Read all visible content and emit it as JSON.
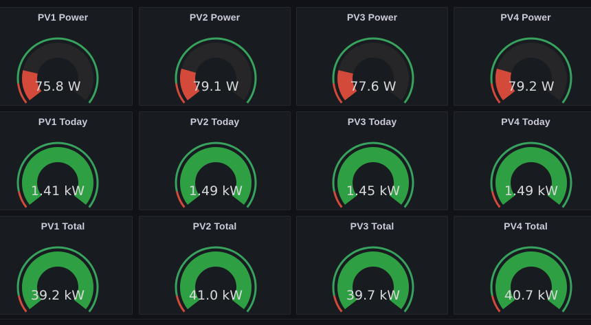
{
  "colors": {
    "background": "#111217",
    "panel": "#181b1f",
    "track": "#262628",
    "threshold_ok": "#37a35e",
    "threshold_low": "#d44a3a",
    "fill_green": "#2ea043"
  },
  "panels": [
    {
      "title": "PV1 Power",
      "value_text": "75.8 W",
      "fill_fraction": 0.2,
      "threshold_fraction": 0.12,
      "style": "power"
    },
    {
      "title": "PV2 Power",
      "value_text": "79.1 W",
      "fill_fraction": 0.21,
      "threshold_fraction": 0.12,
      "style": "power"
    },
    {
      "title": "PV3 Power",
      "value_text": "77.6 W",
      "fill_fraction": 0.2,
      "threshold_fraction": 0.12,
      "style": "power"
    },
    {
      "title": "PV4 Power",
      "value_text": "79.2 W",
      "fill_fraction": 0.21,
      "threshold_fraction": 0.12,
      "style": "power"
    },
    {
      "title": "PV1 Today",
      "value_text": "1.41 kW",
      "fill_fraction": 1.0,
      "threshold_fraction": 0.1,
      "style": "energy"
    },
    {
      "title": "PV2 Today",
      "value_text": "1.49 kW",
      "fill_fraction": 1.0,
      "threshold_fraction": 0.1,
      "style": "energy"
    },
    {
      "title": "PV3 Today",
      "value_text": "1.45 kW",
      "fill_fraction": 1.0,
      "threshold_fraction": 0.1,
      "style": "energy"
    },
    {
      "title": "PV4 Today",
      "value_text": "1.49 kW",
      "fill_fraction": 1.0,
      "threshold_fraction": 0.1,
      "style": "energy"
    },
    {
      "title": "PV1 Total",
      "value_text": "39.2 kW",
      "fill_fraction": 1.0,
      "threshold_fraction": 0.1,
      "style": "energy"
    },
    {
      "title": "PV2 Total",
      "value_text": "41.0 kW",
      "fill_fraction": 1.0,
      "threshold_fraction": 0.1,
      "style": "energy"
    },
    {
      "title": "PV3 Total",
      "value_text": "39.7 kW",
      "fill_fraction": 1.0,
      "threshold_fraction": 0.1,
      "style": "energy"
    },
    {
      "title": "PV4 Total",
      "value_text": "40.7 kW",
      "fill_fraction": 1.0,
      "threshold_fraction": 0.1,
      "style": "energy"
    }
  ]
}
